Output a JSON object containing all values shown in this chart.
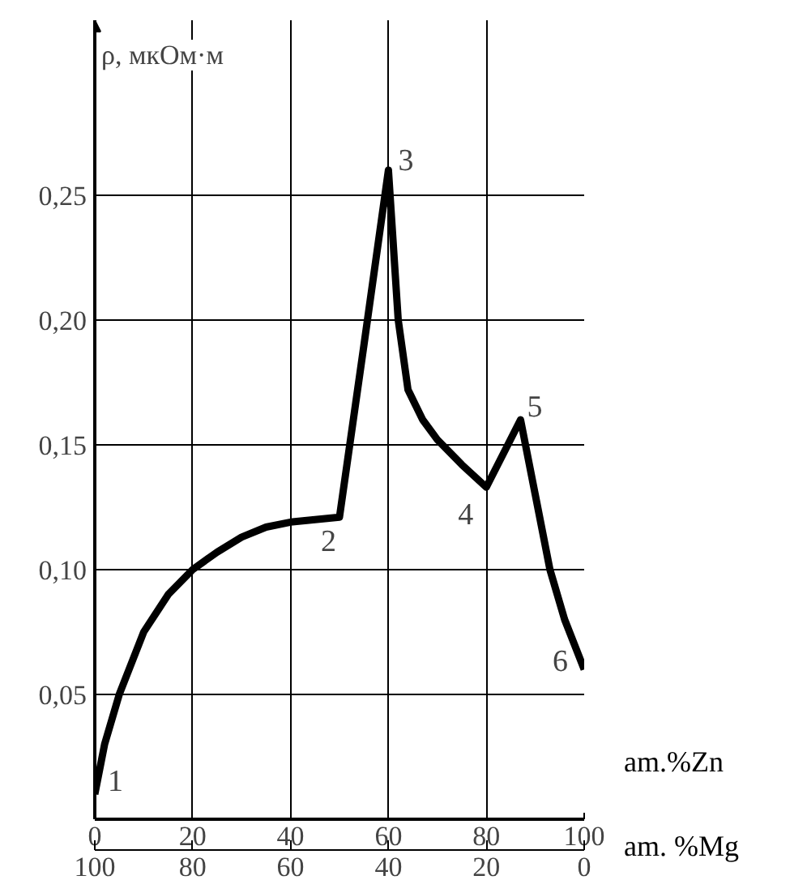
{
  "chart_data": {
    "type": "line",
    "xlabel": "am.%Zn",
    "ylabel": "ρ, мкОм·м",
    "x2label": "am. %Mg",
    "x": [
      0,
      2,
      5,
      10,
      15,
      20,
      25,
      30,
      35,
      40,
      45,
      50,
      55,
      60,
      62,
      64,
      67,
      70,
      75,
      80,
      87,
      90,
      93,
      96,
      100
    ],
    "series": [
      {
        "color": "#000000",
        "values": [
          0.01,
          0.03,
          0.05,
          0.075,
          0.09,
          0.1,
          0.107,
          0.113,
          0.117,
          0.119,
          0.12,
          0.121,
          0.19,
          0.26,
          0.2,
          0.172,
          0.16,
          0.152,
          0.142,
          0.133,
          0.16,
          0.13,
          0.1,
          0.08,
          0.06
        ]
      }
    ],
    "xlim": [
      0,
      100
    ],
    "xticks": [
      0,
      20,
      40,
      60,
      80,
      100
    ],
    "x2lim": [
      100,
      0
    ],
    "x2ticks": [
      100,
      80,
      60,
      40,
      20,
      0
    ],
    "ylim": [
      0,
      0.32
    ],
    "yticks": [
      {
        "value": 0.05,
        "label": "0,05"
      },
      {
        "value": 0.1,
        "label": "0,10"
      },
      {
        "value": 0.15,
        "label": "0,15"
      },
      {
        "value": 0.2,
        "label": "0,20"
      },
      {
        "value": 0.25,
        "label": "0,25"
      }
    ],
    "grid": true,
    "marker": "none",
    "line_style": "solid",
    "annotations": [
      {
        "text": "1",
        "x": 0,
        "y": 0.01
      },
      {
        "text": "2",
        "x": 50,
        "y": 0.121
      },
      {
        "text": "3",
        "x": 60,
        "y": 0.26
      },
      {
        "text": "4",
        "x": 80,
        "y": 0.133
      },
      {
        "text": "5",
        "x": 87,
        "y": 0.16
      },
      {
        "text": "6",
        "x": 100,
        "y": 0.06
      }
    ]
  }
}
